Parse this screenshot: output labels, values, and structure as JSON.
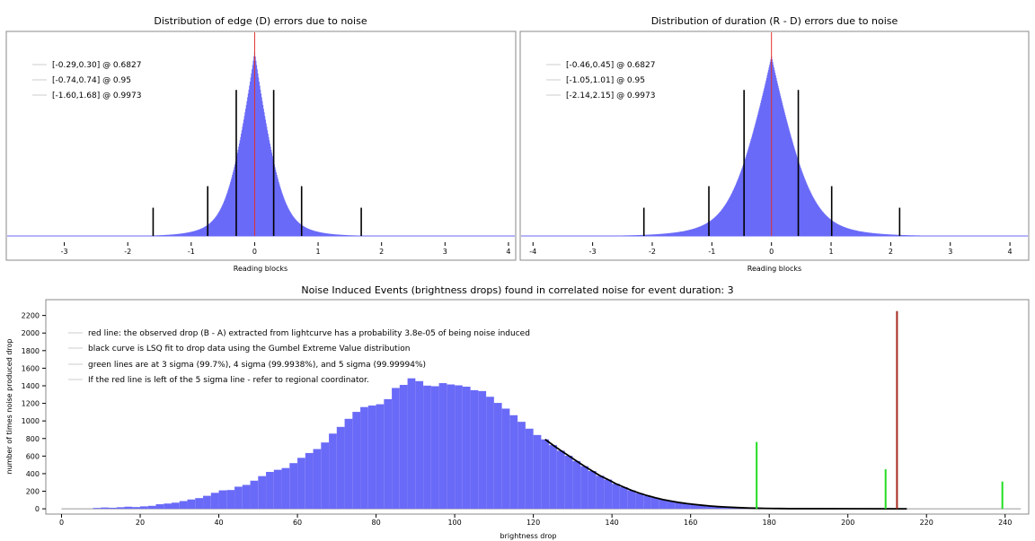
{
  "colors": {
    "bars": "#6a6af8",
    "sigma_marker": "#000000",
    "zero_line": "#e0302c",
    "observed_line": "#a42a1c",
    "sigma_line": "#22dd22",
    "fit_curve": "#000000",
    "frame": "#888888"
  },
  "chart_data": [
    {
      "id": "edge",
      "type": "bar",
      "title": "Distribution of edge (D) errors due to noise",
      "xlabel": "Reading blocks",
      "ylabel": "",
      "xlim": [
        -3.9,
        4.1
      ],
      "x_ticks": [
        -3,
        -2,
        -1,
        0,
        1,
        2,
        3,
        4
      ],
      "distribution": {
        "shape": "laplace-like",
        "center": 0.0,
        "scale": 0.29
      },
      "legend": [
        {
          "label": "[-0.29,0.30] @ 0.6827"
        },
        {
          "label": "[-0.74,0.74] @ 0.95"
        },
        {
          "label": "[-1.60,1.68] @ 0.9973"
        }
      ],
      "markers": [
        {
          "x": -1.6,
          "height": 0.17
        },
        {
          "x": -0.74,
          "height": 0.3
        },
        {
          "x": -0.29,
          "height": 0.88
        },
        {
          "x": 0.3,
          "height": 0.88
        },
        {
          "x": 0.74,
          "height": 0.3
        },
        {
          "x": 1.68,
          "height": 0.17
        }
      ],
      "zero_line_x": 0
    },
    {
      "id": "duration",
      "type": "bar",
      "title": "Distribution of duration (R - D) errors due to noise",
      "xlabel": "Reading blocks",
      "ylabel": "",
      "xlim": [
        -4.2,
        4.3
      ],
      "x_ticks": [
        -4,
        -3,
        -2,
        -1,
        0,
        1,
        2,
        3,
        4
      ],
      "distribution": {
        "shape": "laplace-like",
        "center": 0.0,
        "scale": 0.45
      },
      "legend": [
        {
          "label": "[-0.46,0.45] @ 0.6827"
        },
        {
          "label": "[-1.05,1.01] @ 0.95"
        },
        {
          "label": "[-2.14,2.15] @ 0.9973"
        }
      ],
      "markers": [
        {
          "x": -2.14,
          "height": 0.17
        },
        {
          "x": -1.05,
          "height": 0.3
        },
        {
          "x": -0.46,
          "height": 0.88
        },
        {
          "x": 0.45,
          "height": 0.88
        },
        {
          "x": 1.01,
          "height": 0.3
        },
        {
          "x": 2.15,
          "height": 0.17
        }
      ],
      "zero_line_x": 0
    },
    {
      "id": "brightness",
      "type": "bar",
      "title": "Noise Induced Events (brightness drops) found in correlated noise for event duration: 3",
      "xlabel": "brightness drop",
      "ylabel": "number of times noise produced drop",
      "xlim": [
        -4,
        246
      ],
      "ylim": [
        -60,
        2380
      ],
      "x_ticks": [
        0,
        20,
        40,
        60,
        80,
        100,
        120,
        140,
        160,
        180,
        200,
        220,
        240
      ],
      "y_ticks": [
        0,
        200,
        400,
        600,
        800,
        1000,
        1200,
        1400,
        1600,
        1800,
        2000,
        2200
      ],
      "bin_width": 2,
      "bins": [
        [
          8,
          10
        ],
        [
          10,
          15
        ],
        [
          12,
          12
        ],
        [
          14,
          18
        ],
        [
          16,
          24
        ],
        [
          18,
          20
        ],
        [
          20,
          28
        ],
        [
          22,
          34
        ],
        [
          24,
          52
        ],
        [
          26,
          60
        ],
        [
          28,
          70
        ],
        [
          30,
          88
        ],
        [
          32,
          106
        ],
        [
          34,
          122
        ],
        [
          36,
          148
        ],
        [
          38,
          182
        ],
        [
          40,
          210
        ],
        [
          42,
          214
        ],
        [
          44,
          252
        ],
        [
          46,
          272
        ],
        [
          48,
          320
        ],
        [
          50,
          372
        ],
        [
          52,
          420
        ],
        [
          54,
          444
        ],
        [
          56,
          464
        ],
        [
          58,
          520
        ],
        [
          60,
          580
        ],
        [
          62,
          635
        ],
        [
          64,
          680
        ],
        [
          66,
          755
        ],
        [
          68,
          856
        ],
        [
          70,
          932
        ],
        [
          72,
          1024
        ],
        [
          74,
          1103
        ],
        [
          76,
          1158
        ],
        [
          78,
          1175
        ],
        [
          80,
          1190
        ],
        [
          82,
          1248
        ],
        [
          84,
          1375
        ],
        [
          86,
          1410
        ],
        [
          88,
          1485
        ],
        [
          90,
          1453
        ],
        [
          92,
          1402
        ],
        [
          94,
          1395
        ],
        [
          96,
          1430
        ],
        [
          98,
          1415
        ],
        [
          100,
          1405
        ],
        [
          102,
          1390
        ],
        [
          104,
          1350
        ],
        [
          106,
          1340
        ],
        [
          108,
          1275
        ],
        [
          110,
          1205
        ],
        [
          112,
          1140
        ],
        [
          114,
          1065
        ],
        [
          116,
          990
        ],
        [
          118,
          912
        ],
        [
          120,
          840
        ],
        [
          122,
          790
        ],
        [
          124,
          725
        ],
        [
          126,
          662
        ],
        [
          128,
          604
        ],
        [
          130,
          544
        ],
        [
          132,
          485
        ],
        [
          134,
          430
        ],
        [
          136,
          376
        ],
        [
          138,
          333
        ],
        [
          140,
          285
        ],
        [
          142,
          247
        ],
        [
          144,
          210
        ],
        [
          146,
          178
        ],
        [
          148,
          150
        ],
        [
          150,
          126
        ],
        [
          152,
          105
        ],
        [
          154,
          88
        ],
        [
          156,
          72
        ],
        [
          158,
          60
        ],
        [
          160,
          50
        ],
        [
          162,
          40
        ],
        [
          164,
          32
        ],
        [
          166,
          25
        ],
        [
          168,
          20
        ],
        [
          170,
          16
        ],
        [
          172,
          12
        ],
        [
          174,
          9
        ],
        [
          176,
          7
        ],
        [
          178,
          5
        ],
        [
          180,
          4
        ],
        [
          182,
          3
        ],
        [
          184,
          2
        ],
        [
          186,
          2
        ]
      ],
      "fit_curve": {
        "label": "Gumbel Extreme Value LSQ fit",
        "x_start": 122,
        "x_end": 215
      },
      "observed_drop": {
        "x": 212.5,
        "height": 2250
      },
      "sigma_lines": [
        {
          "label": "3 sigma",
          "x": 176.8,
          "height": 760
        },
        {
          "label": "4 sigma",
          "x": 209.6,
          "height": 450
        },
        {
          "label": "5 sigma",
          "x": 239.3,
          "height": 310
        }
      ],
      "legend": [
        {
          "label": "red line: the observed drop (B - A) extracted from lightcurve has a probability 3.8e-05 of being noise induced"
        },
        {
          "label": "black curve is LSQ fit to drop data using the Gumbel Extreme Value distribution"
        },
        {
          "label": "green lines are at 3 sigma (99.7%), 4 sigma (99.9938%), and 5 sigma (99.99994%)"
        },
        {
          "label": "If the red line is left of the 5 sigma line - refer to regional coordinator."
        }
      ]
    }
  ]
}
